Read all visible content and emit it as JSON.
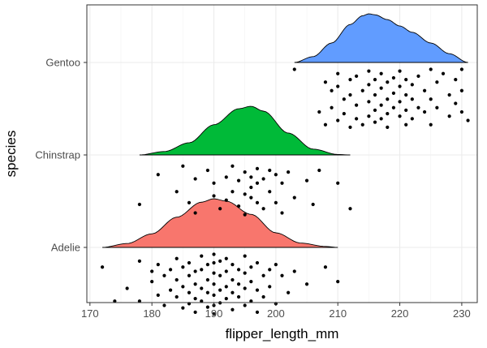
{
  "chart_data": {
    "type": "raincloud",
    "title": "",
    "xlabel": "flipper_length_mm",
    "ylabel": "species",
    "xlim": [
      169.5,
      232.5
    ],
    "x_ticks": [
      170,
      180,
      190,
      200,
      210,
      220,
      230
    ],
    "categories": [
      "Adelie",
      "Chinstrap",
      "Gentoo"
    ],
    "grid": true,
    "legend": "none",
    "series": [
      {
        "category": "Adelie",
        "color": "#F8766D",
        "range": [
          172,
          210
        ],
        "density_x": [
          172,
          176,
          180,
          184,
          188,
          190,
          192,
          196,
          200,
          204,
          208,
          210
        ],
        "density_y": [
          0.0,
          0.08,
          0.28,
          0.62,
          0.93,
          1.0,
          0.95,
          0.68,
          0.3,
          0.09,
          0.02,
          0.0
        ],
        "points": [
          [
            172,
            0.15
          ],
          [
            174,
            -0.25
          ],
          [
            176,
            -0.1
          ],
          [
            178,
            0.22
          ],
          [
            178,
            -0.25
          ],
          [
            180,
            0.1
          ],
          [
            180,
            -0.02
          ],
          [
            181,
            0.18
          ],
          [
            181,
            -0.18
          ],
          [
            182,
            0.05
          ],
          [
            182,
            -0.3
          ],
          [
            183,
            0.12
          ],
          [
            183,
            -0.12
          ],
          [
            184,
            0.25
          ],
          [
            184,
            0.0
          ],
          [
            184,
            -0.2
          ],
          [
            185,
            0.15
          ],
          [
            185,
            -0.08
          ],
          [
            185,
            -0.33
          ],
          [
            186,
            0.2
          ],
          [
            186,
            0.05
          ],
          [
            186,
            -0.15
          ],
          [
            186,
            -0.28
          ],
          [
            187,
            0.1
          ],
          [
            187,
            -0.05
          ],
          [
            187,
            -0.22
          ],
          [
            187,
            -0.38
          ],
          [
            188,
            0.28
          ],
          [
            188,
            0.12
          ],
          [
            188,
            -0.1
          ],
          [
            188,
            -0.25
          ],
          [
            189,
            0.18
          ],
          [
            189,
            0.0
          ],
          [
            189,
            -0.15
          ],
          [
            189,
            -0.32
          ],
          [
            190,
            0.3
          ],
          [
            190,
            0.2
          ],
          [
            190,
            0.08
          ],
          [
            190,
            -0.05
          ],
          [
            190,
            -0.18
          ],
          [
            190,
            -0.3
          ],
          [
            190,
            -0.4
          ],
          [
            191,
            0.22
          ],
          [
            191,
            0.05
          ],
          [
            191,
            -0.12
          ],
          [
            191,
            -0.27
          ],
          [
            192,
            0.25
          ],
          [
            192,
            0.1
          ],
          [
            192,
            -0.08
          ],
          [
            192,
            -0.22
          ],
          [
            193,
            0.18
          ],
          [
            193,
            0.0
          ],
          [
            193,
            -0.15
          ],
          [
            193,
            -0.35
          ],
          [
            194,
            0.12
          ],
          [
            194,
            -0.05
          ],
          [
            194,
            -0.2
          ],
          [
            195,
            0.28
          ],
          [
            195,
            0.08
          ],
          [
            195,
            -0.1
          ],
          [
            195,
            -0.3
          ],
          [
            196,
            0.15
          ],
          [
            196,
            -0.02
          ],
          [
            196,
            -0.25
          ],
          [
            197,
            0.2
          ],
          [
            197,
            -0.12
          ],
          [
            197,
            -0.38
          ],
          [
            198,
            0.05
          ],
          [
            198,
            -0.2
          ],
          [
            199,
            0.12
          ],
          [
            199,
            -0.08
          ],
          [
            200,
            0.18
          ],
          [
            200,
            -0.28
          ],
          [
            201,
            0.05
          ],
          [
            202,
            -0.15
          ],
          [
            203,
            0.1
          ],
          [
            205,
            -0.05
          ],
          [
            208,
            0.15
          ],
          [
            210,
            -0.02
          ]
        ]
      },
      {
        "category": "Chinstrap",
        "color": "#00BA38",
        "range": [
          178,
          212
        ],
        "density_x": [
          178,
          182,
          186,
          190,
          194,
          196,
          198,
          202,
          206,
          210,
          212
        ],
        "density_y": [
          0.0,
          0.07,
          0.25,
          0.62,
          0.95,
          1.0,
          0.9,
          0.45,
          0.12,
          0.01,
          0.0
        ],
        "points": [
          [
            178,
            -0.2
          ],
          [
            181,
            0.15
          ],
          [
            184,
            -0.05
          ],
          [
            185,
            0.25
          ],
          [
            186,
            -0.18
          ],
          [
            187,
            0.1
          ],
          [
            187,
            -0.3
          ],
          [
            189,
            0.2
          ],
          [
            190,
            -0.1
          ],
          [
            190,
            0.05
          ],
          [
            191,
            -0.25
          ],
          [
            192,
            0.12
          ],
          [
            192,
            -0.15
          ],
          [
            193,
            -0.05
          ],
          [
            193,
            0.25
          ],
          [
            194,
            0.08
          ],
          [
            194,
            -0.22
          ],
          [
            195,
            0.18
          ],
          [
            195,
            -0.08
          ],
          [
            195,
            -0.32
          ],
          [
            196,
            0.12
          ],
          [
            196,
            -0.12
          ],
          [
            196,
            0.0
          ],
          [
            197,
            0.22
          ],
          [
            197,
            -0.18
          ],
          [
            197,
            0.05
          ],
          [
            198,
            0.1
          ],
          [
            198,
            -0.25
          ],
          [
            199,
            0.2
          ],
          [
            199,
            -0.05
          ],
          [
            200,
            0.15
          ],
          [
            200,
            -0.18
          ],
          [
            201,
            0.05
          ],
          [
            201,
            -0.3
          ],
          [
            202,
            0.18
          ],
          [
            203,
            -0.12
          ],
          [
            205,
            0.08
          ],
          [
            206,
            -0.2
          ],
          [
            207,
            0.2
          ],
          [
            210,
            0.05
          ],
          [
            212,
            -0.25
          ]
        ]
      },
      {
        "category": "Gentoo",
        "color": "#619CFF",
        "range": [
          203,
          231
        ],
        "density_x": [
          203,
          206,
          209,
          212,
          214,
          215,
          216,
          218,
          220,
          222,
          225,
          228,
          231
        ],
        "density_y": [
          0.0,
          0.12,
          0.4,
          0.78,
          0.96,
          1.0,
          0.98,
          0.88,
          0.75,
          0.62,
          0.4,
          0.18,
          0.0
        ],
        "points": [
          [
            203,
            0.3
          ],
          [
            207,
            -0.2
          ],
          [
            208,
            0.15
          ],
          [
            208,
            -0.35
          ],
          [
            209,
            0.05
          ],
          [
            209,
            -0.15
          ],
          [
            210,
            0.25
          ],
          [
            210,
            -0.3
          ],
          [
            210,
            0.1
          ],
          [
            211,
            -0.05
          ],
          [
            211,
            -0.22
          ],
          [
            212,
            0.18
          ],
          [
            212,
            -0.38
          ],
          [
            212,
            0.0
          ],
          [
            213,
            0.22
          ],
          [
            213,
            -0.12
          ],
          [
            213,
            -0.28
          ],
          [
            214,
            0.05
          ],
          [
            214,
            -0.35
          ],
          [
            215,
            0.28
          ],
          [
            215,
            0.12
          ],
          [
            215,
            -0.08
          ],
          [
            215,
            -0.25
          ],
          [
            216,
            0.18
          ],
          [
            216,
            0.0
          ],
          [
            216,
            -0.18
          ],
          [
            216,
            -0.32
          ],
          [
            217,
            0.25
          ],
          [
            217,
            0.08
          ],
          [
            217,
            -0.12
          ],
          [
            217,
            -0.28
          ],
          [
            218,
            0.15
          ],
          [
            218,
            -0.05
          ],
          [
            218,
            -0.22
          ],
          [
            218,
            -0.38
          ],
          [
            219,
            0.2
          ],
          [
            219,
            0.02
          ],
          [
            219,
            -0.15
          ],
          [
            220,
            0.28
          ],
          [
            220,
            0.1
          ],
          [
            220,
            -0.08
          ],
          [
            220,
            -0.25
          ],
          [
            221,
            0.18
          ],
          [
            221,
            0.0
          ],
          [
            221,
            -0.18
          ],
          [
            221,
            -0.35
          ],
          [
            222,
            0.12
          ],
          [
            222,
            -0.05
          ],
          [
            222,
            -0.28
          ],
          [
            223,
            0.22
          ],
          [
            223,
            -0.15
          ],
          [
            224,
            0.05
          ],
          [
            224,
            -0.2
          ],
          [
            225,
            0.3
          ],
          [
            225,
            -0.05
          ],
          [
            225,
            -0.35
          ],
          [
            226,
            0.15
          ],
          [
            226,
            -0.15
          ],
          [
            227,
            0.25
          ],
          [
            228,
            0.0
          ],
          [
            228,
            -0.25
          ],
          [
            229,
            0.18
          ],
          [
            229,
            -0.1
          ],
          [
            230,
            0.3
          ],
          [
            230,
            0.05
          ],
          [
            230,
            -0.2
          ],
          [
            231,
            -0.3
          ]
        ]
      }
    ]
  }
}
